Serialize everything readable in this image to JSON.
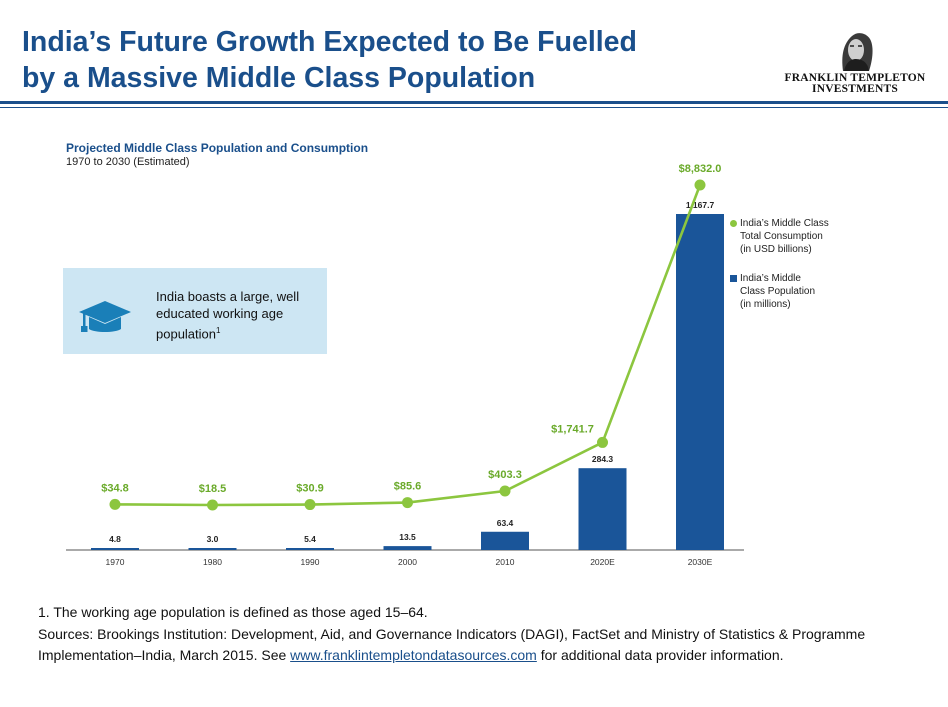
{
  "header": {
    "title_line1": "India’s Future Growth Expected to Be Fuelled",
    "title_line2": "by a Massive Middle Class Population",
    "logo_line1": "FRANKLIN TEMPLETON",
    "logo_line2": "INVESTMENTS"
  },
  "callout": {
    "text": "India boasts a large, well educated working age population",
    "sup": "1",
    "icon": "graduation-cap-icon"
  },
  "footnote": {
    "note1": "1. The working age population is defined as those aged 15–64.",
    "sources_pre": "Sources: Brookings Institution:  Development, Aid, and Governance Indicators (DAGI),  FactSet and Ministry of Statistics  & Programme Implementation–India, March 2015. See ",
    "link_text": "www.franklintempletondatasources.com",
    "sources_post": " for additional data provider information."
  },
  "chart_data": {
    "type": "bar",
    "title": "Projected Middle Class Population and Consumption",
    "subtitle": "1970 to 2030 (Estimated)",
    "categories": [
      "1970",
      "1980",
      "1990",
      "2000",
      "2010",
      "2020E",
      "2030E"
    ],
    "series": [
      {
        "name": "India’s Middle Class Population (in millions)",
        "type": "bar",
        "values": [
          4.8,
          3.0,
          5.4,
          13.5,
          63.4,
          284.3,
          1167.7
        ],
        "labels": [
          "4.8",
          "3.0",
          "5.4",
          "13.5",
          "63.4",
          "284.3",
          "1,167.7"
        ]
      },
      {
        "name": "India’s Middle Class Total Consumption (in USD billions)",
        "type": "line",
        "values": [
          34.8,
          18.5,
          30.9,
          85.6,
          403.3,
          1741.7,
          8832.0
        ],
        "labels": [
          "$34.8",
          "$18.5",
          "$30.9",
          "$85.6",
          "$403.3",
          "$1,741.7",
          "$8,832.0"
        ]
      }
    ],
    "legend": [
      [
        "India’s Middle Class",
        "Total Consumption",
        "(in USD billions)"
      ],
      [
        "India’s Middle",
        "Class Population",
        "(in millions)"
      ]
    ],
    "legend_position": "right",
    "colors": {
      "bar": "#1a5599",
      "line": "#8cc63f",
      "line_label": "#6aaa2a"
    }
  }
}
